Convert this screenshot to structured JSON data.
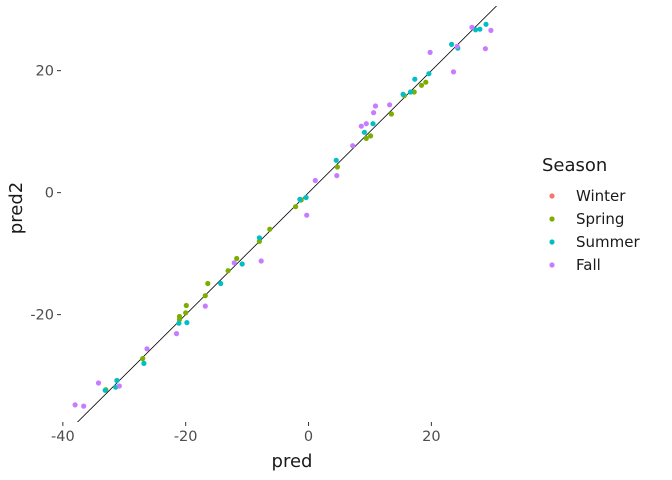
{
  "chart_data": {
    "type": "scatter",
    "title": "",
    "xlabel": "pred",
    "ylabel": "pred2",
    "xlim": [
      -40.3,
      31.5
    ],
    "ylim": [
      -37.6,
      30.6
    ],
    "x_ticks": [
      -40,
      -20,
      0,
      20
    ],
    "y_ticks": [
      -20,
      0,
      20
    ],
    "x_tick_labels": [
      "-40",
      "-20",
      "0",
      "20"
    ],
    "y_tick_labels": [
      "-20",
      "0",
      "20"
    ],
    "grid": false,
    "legend": {
      "title": "Season",
      "position": "right"
    },
    "reference_line": {
      "slope": 1,
      "intercept": 0,
      "color": "#000000"
    },
    "series": [
      {
        "name": "Winter",
        "color": "#F8766D",
        "points": []
      },
      {
        "name": "Spring",
        "color": "#7CAE00",
        "points": [
          [
            -33,
            -32.3
          ],
          [
            -27,
            -27.2
          ],
          [
            -21,
            -20.8
          ],
          [
            -21,
            -20.3
          ],
          [
            -20,
            -19.7
          ],
          [
            -19.9,
            -18.5
          ],
          [
            -16.8,
            -16.9
          ],
          [
            -16.4,
            -14.9
          ],
          [
            -13.1,
            -12.8
          ],
          [
            -11.7,
            -10.8
          ],
          [
            -8,
            -8
          ],
          [
            -6.3,
            -6
          ],
          [
            -2.1,
            -2.3
          ],
          [
            -1.2,
            -1.2
          ],
          [
            4.7,
            4.2
          ],
          [
            9.4,
            8.9
          ],
          [
            10.1,
            9.3
          ],
          [
            13.5,
            12.9
          ],
          [
            15.6,
            15.9
          ],
          [
            17.2,
            16.5
          ],
          [
            18.4,
            17.6
          ],
          [
            19.1,
            18.1
          ]
        ]
      },
      {
        "name": "Summer",
        "color": "#00BFC4",
        "points": [
          [
            -33.1,
            -32.4
          ],
          [
            -31.4,
            -31.9
          ],
          [
            -31.2,
            -30.8
          ],
          [
            -26.8,
            -28
          ],
          [
            -21.1,
            -21.4
          ],
          [
            -19.8,
            -21.3
          ],
          [
            -14.3,
            -14.9
          ],
          [
            -10.8,
            -11.7
          ],
          [
            -8,
            -7.4
          ],
          [
            -1.4,
            -1.1
          ],
          [
            -0.4,
            -0.8
          ],
          [
            4.5,
            5.3
          ],
          [
            9.1,
            9.9
          ],
          [
            10.5,
            11.3
          ],
          [
            15.4,
            16.1
          ],
          [
            16.6,
            16.5
          ],
          [
            17.3,
            18.6
          ],
          [
            19.6,
            19.5
          ],
          [
            23.3,
            24.3
          ],
          [
            24.3,
            23.7
          ],
          [
            27.2,
            26.7
          ],
          [
            27.9,
            26.8
          ],
          [
            28.9,
            27.6
          ]
        ]
      },
      {
        "name": "Fall",
        "color": "#C77CFF",
        "points": [
          [
            -38,
            -34.8
          ],
          [
            -36.6,
            -35
          ],
          [
            -34.2,
            -31.2
          ],
          [
            -30.8,
            -31.7
          ],
          [
            -26.3,
            -25.6
          ],
          [
            -21.5,
            -23.1
          ],
          [
            -16.8,
            -18.6
          ],
          [
            -12.1,
            -11.5
          ],
          [
            -7.7,
            -11.2
          ],
          [
            -0.3,
            -3.7
          ],
          [
            1.1,
            2
          ],
          [
            4.6,
            2.8
          ],
          [
            7.2,
            7.7
          ],
          [
            8.6,
            10.9
          ],
          [
            9.4,
            11.3
          ],
          [
            10.6,
            13.1
          ],
          [
            10.9,
            14.2
          ],
          [
            13.2,
            14.4
          ],
          [
            19.8,
            23
          ],
          [
            23.6,
            19.8
          ],
          [
            24.2,
            24
          ],
          [
            26.6,
            27.1
          ],
          [
            28.8,
            23.6
          ],
          [
            29.7,
            26.6
          ]
        ]
      }
    ]
  }
}
